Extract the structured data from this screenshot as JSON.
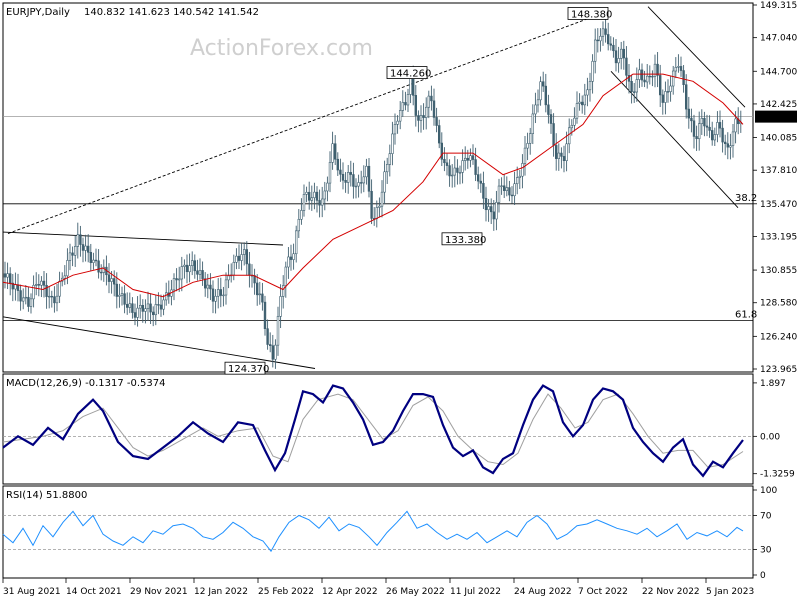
{
  "chart_data": {
    "type": "candlestick",
    "watermark": "ActionForex.com",
    "x_ticks": [
      "31 Aug 2021",
      "14 Oct 2021",
      "29 Nov 2021",
      "12 Jan 2022",
      "25 Feb 2022",
      "12 Apr 2022",
      "26 May 2022",
      "11 Jul 2022",
      "24 Aug 2022",
      "7 Oct 2022",
      "22 Nov 2022",
      "5 Jan 2023"
    ],
    "price": {
      "header": "EURJPY,Daily",
      "ohlc": "140.832 141.623 140.542 141.542",
      "ylim": [
        123.965,
        149.315
      ],
      "y_ticks": [
        {
          "v": 149.315,
          "label": "149.315"
        },
        {
          "v": 147.04,
          "label": "147.040"
        },
        {
          "v": 144.7,
          "label": "144.700"
        },
        {
          "v": 142.425,
          "label": "142.425"
        },
        {
          "v": 140.085,
          "label": "140.085"
        },
        {
          "v": 137.81,
          "label": "137.810"
        },
        {
          "v": 135.47,
          "label": "135.470"
        },
        {
          "v": 133.195,
          "label": "133.195"
        },
        {
          "v": 130.855,
          "label": "130.855"
        },
        {
          "v": 128.58,
          "label": "128.580"
        },
        {
          "v": 126.24,
          "label": "126.240"
        },
        {
          "v": 123.965,
          "label": "123.965"
        }
      ],
      "current": {
        "value": 141.542,
        "label": "141.542"
      },
      "annotations": [
        {
          "label": "148.380",
          "value": 148.38
        },
        {
          "label": "144.260",
          "value": 144.26
        },
        {
          "label": "133.380",
          "value": 133.38
        },
        {
          "label": "124.370",
          "value": 124.37
        }
      ],
      "fib_levels": [
        {
          "label": "38.2",
          "value": 135.47
        },
        {
          "label": "61.8",
          "value": 127.35
        }
      ],
      "ma_label": "",
      "close_path": [
        [
          0,
          130.6
        ],
        [
          8,
          130.0
        ],
        [
          18,
          129.0
        ],
        [
          25,
          128.5
        ],
        [
          35,
          130.2
        ],
        [
          45,
          129.2
        ],
        [
          50,
          128.5
        ],
        [
          60,
          130.4
        ],
        [
          65,
          131.5
        ],
        [
          75,
          133.0
        ],
        [
          85,
          132.0
        ],
        [
          95,
          131.0
        ],
        [
          105,
          130.5
        ],
        [
          115,
          129.2
        ],
        [
          125,
          128.4
        ],
        [
          130,
          127.8
        ],
        [
          140,
          128.3
        ],
        [
          150,
          128.0
        ],
        [
          160,
          128.6
        ],
        [
          170,
          129.8
        ],
        [
          180,
          131.0
        ],
        [
          190,
          131.2
        ],
        [
          200,
          130.2
        ],
        [
          210,
          129.0
        ],
        [
          220,
          129.3
        ],
        [
          230,
          131.2
        ],
        [
          240,
          132.2
        ],
        [
          250,
          130.0
        ],
        [
          258,
          129.0
        ],
        [
          264,
          126.0
        ],
        [
          270,
          124.6
        ],
        [
          276,
          128.0
        ],
        [
          282,
          131.0
        ],
        [
          290,
          132.0
        ],
        [
          300,
          136.0
        ],
        [
          310,
          136.0
        ],
        [
          320,
          135.5
        ],
        [
          330,
          139.5
        ],
        [
          338,
          137.0
        ],
        [
          346,
          137.5
        ],
        [
          355,
          136.5
        ],
        [
          363,
          138.0
        ],
        [
          370,
          134.0
        ],
        [
          378,
          136.0
        ],
        [
          386,
          139.0
        ],
        [
          394,
          141.5
        ],
        [
          402,
          142.5
        ],
        [
          408,
          144.0
        ],
        [
          415,
          141.0
        ],
        [
          422,
          142.0
        ],
        [
          428,
          143.0
        ],
        [
          435,
          140.0
        ],
        [
          442,
          138.0
        ],
        [
          450,
          137.5
        ],
        [
          458,
          138.0
        ],
        [
          466,
          139.0
        ],
        [
          474,
          137.5
        ],
        [
          482,
          135.5
        ],
        [
          490,
          134.5
        ],
        [
          498,
          137.0
        ],
        [
          506,
          136.0
        ],
        [
          514,
          137.0
        ],
        [
          522,
          139.0
        ],
        [
          530,
          141.5
        ],
        [
          538,
          144.0
        ],
        [
          545,
          142.0
        ],
        [
          552,
          139.0
        ],
        [
          560,
          138.5
        ],
        [
          568,
          141.0
        ],
        [
          576,
          142.5
        ],
        [
          584,
          143.0
        ],
        [
          592,
          146.5
        ],
        [
          598,
          147.5
        ],
        [
          605,
          147.0
        ],
        [
          612,
          145.5
        ],
        [
          620,
          146.0
        ],
        [
          628,
          143.0
        ],
        [
          636,
          144.5
        ],
        [
          644,
          144.0
        ],
        [
          652,
          145.0
        ],
        [
          660,
          142.5
        ],
        [
          668,
          144.0
        ],
        [
          676,
          145.5
        ],
        [
          684,
          142.0
        ],
        [
          692,
          140.0
        ],
        [
          700,
          141.5
        ],
        [
          708,
          140.0
        ],
        [
          716,
          141.0
        ],
        [
          724,
          139.0
        ],
        [
          732,
          141.0
        ],
        [
          740,
          141.542
        ]
      ],
      "ma_path": [
        [
          0,
          130.0
        ],
        [
          40,
          129.5
        ],
        [
          70,
          130.5
        ],
        [
          100,
          131.0
        ],
        [
          130,
          129.5
        ],
        [
          160,
          129.0
        ],
        [
          190,
          130.0
        ],
        [
          220,
          130.5
        ],
        [
          250,
          130.5
        ],
        [
          280,
          129.5
        ],
        [
          300,
          131.0
        ],
        [
          330,
          133.0
        ],
        [
          360,
          134.0
        ],
        [
          390,
          135.0
        ],
        [
          420,
          137.0
        ],
        [
          440,
          139.0
        ],
        [
          470,
          139.0
        ],
        [
          500,
          137.5
        ],
        [
          520,
          138.0
        ],
        [
          550,
          139.5
        ],
        [
          580,
          141.0
        ],
        [
          600,
          143.0
        ],
        [
          630,
          144.5
        ],
        [
          660,
          144.5
        ],
        [
          690,
          144.0
        ],
        [
          720,
          142.5
        ],
        [
          740,
          141.0
        ]
      ],
      "lines": [
        {
          "name": "upper-dotted-trendline",
          "dash": true,
          "p1": [
            5,
            133.4
          ],
          "p2": [
            598,
            148.7
          ]
        },
        {
          "name": "flag-upper",
          "dash": false,
          "p1": [
            0,
            133.5
          ],
          "p2": [
            280,
            132.6
          ]
        },
        {
          "name": "flag-lower",
          "dash": false,
          "p1": [
            0,
            127.6
          ],
          "p2": [
            312,
            124.0
          ]
        },
        {
          "name": "channel-upper",
          "dash": false,
          "p1": [
            645,
            149.2
          ],
          "p2": [
            742,
            142.2
          ]
        },
        {
          "name": "channel-lower",
          "dash": false,
          "p1": [
            608,
            144.7
          ],
          "p2": [
            735,
            135.2
          ]
        }
      ]
    },
    "macd": {
      "header": "MACD(12,26,9) -0.1317 -0.5374",
      "ylim": [
        -1.55,
        2.0
      ],
      "y_ticks": [
        {
          "v": 1.897,
          "label": "1.897"
        },
        {
          "v": 0.0,
          "label": "0.00"
        },
        {
          "v": -1.3259,
          "label": "-1.3259"
        }
      ],
      "main_path": [
        [
          0,
          -0.4
        ],
        [
          15,
          0.0
        ],
        [
          30,
          -0.3
        ],
        [
          45,
          0.3
        ],
        [
          60,
          -0.1
        ],
        [
          75,
          0.8
        ],
        [
          90,
          1.3
        ],
        [
          100,
          0.9
        ],
        [
          115,
          -0.2
        ],
        [
          130,
          -0.7
        ],
        [
          145,
          -0.8
        ],
        [
          160,
          -0.4
        ],
        [
          175,
          0.0
        ],
        [
          190,
          0.5
        ],
        [
          205,
          0.1
        ],
        [
          220,
          -0.2
        ],
        [
          235,
          0.5
        ],
        [
          250,
          0.4
        ],
        [
          262,
          -0.5
        ],
        [
          272,
          -1.2
        ],
        [
          282,
          -0.6
        ],
        [
          292,
          0.6
        ],
        [
          300,
          1.6
        ],
        [
          310,
          1.5
        ],
        [
          320,
          1.2
        ],
        [
          330,
          1.8
        ],
        [
          340,
          1.7
        ],
        [
          350,
          1.2
        ],
        [
          360,
          0.6
        ],
        [
          370,
          -0.3
        ],
        [
          380,
          -0.2
        ],
        [
          390,
          0.2
        ],
        [
          400,
          0.9
        ],
        [
          410,
          1.5
        ],
        [
          420,
          1.5
        ],
        [
          430,
          1.4
        ],
        [
          440,
          0.4
        ],
        [
          450,
          -0.4
        ],
        [
          460,
          -0.7
        ],
        [
          470,
          -0.5
        ],
        [
          480,
          -1.1
        ],
        [
          490,
          -1.3
        ],
        [
          500,
          -0.8
        ],
        [
          510,
          -0.6
        ],
        [
          520,
          0.4
        ],
        [
          530,
          1.3
        ],
        [
          540,
          1.8
        ],
        [
          550,
          1.6
        ],
        [
          560,
          0.5
        ],
        [
          570,
          0.0
        ],
        [
          580,
          0.4
        ],
        [
          590,
          1.3
        ],
        [
          600,
          1.7
        ],
        [
          610,
          1.6
        ],
        [
          620,
          1.3
        ],
        [
          630,
          0.3
        ],
        [
          640,
          -0.2
        ],
        [
          650,
          -0.6
        ],
        [
          660,
          -0.9
        ],
        [
          670,
          -0.4
        ],
        [
          680,
          -0.1
        ],
        [
          690,
          -1.0
        ],
        [
          700,
          -1.4
        ],
        [
          710,
          -0.9
        ],
        [
          720,
          -1.1
        ],
        [
          730,
          -0.6
        ],
        [
          740,
          -0.13
        ]
      ],
      "signal_path": [
        [
          0,
          -0.2
        ],
        [
          20,
          -0.1
        ],
        [
          40,
          0.0
        ],
        [
          60,
          0.2
        ],
        [
          80,
          0.7
        ],
        [
          100,
          1.0
        ],
        [
          115,
          0.3
        ],
        [
          130,
          -0.4
        ],
        [
          145,
          -0.7
        ],
        [
          160,
          -0.5
        ],
        [
          180,
          -0.1
        ],
        [
          200,
          0.3
        ],
        [
          215,
          0.0
        ],
        [
          235,
          0.2
        ],
        [
          255,
          0.3
        ],
        [
          270,
          -0.7
        ],
        [
          285,
          -0.9
        ],
        [
          300,
          0.6
        ],
        [
          315,
          1.3
        ],
        [
          335,
          1.5
        ],
        [
          350,
          1.3
        ],
        [
          365,
          0.6
        ],
        [
          380,
          -0.1
        ],
        [
          395,
          0.2
        ],
        [
          410,
          1.1
        ],
        [
          425,
          1.4
        ],
        [
          440,
          0.9
        ],
        [
          455,
          0.0
        ],
        [
          470,
          -0.5
        ],
        [
          485,
          -0.9
        ],
        [
          500,
          -1.0
        ],
        [
          515,
          -0.6
        ],
        [
          530,
          0.6
        ],
        [
          545,
          1.5
        ],
        [
          558,
          1.0
        ],
        [
          572,
          0.3
        ],
        [
          585,
          0.5
        ],
        [
          600,
          1.3
        ],
        [
          615,
          1.5
        ],
        [
          630,
          0.8
        ],
        [
          645,
          0.0
        ],
        [
          660,
          -0.6
        ],
        [
          675,
          -0.5
        ],
        [
          690,
          -0.5
        ],
        [
          705,
          -1.1
        ],
        [
          720,
          -1.0
        ],
        [
          740,
          -0.54
        ]
      ]
    },
    "rsi": {
      "header": "RSI(14) 51.8800",
      "ylim": [
        0,
        100
      ],
      "y_ticks": [
        {
          "v": 100,
          "label": "100"
        },
        {
          "v": 70,
          "label": "70"
        },
        {
          "v": 30,
          "label": "30"
        },
        {
          "v": 0,
          "label": "0"
        }
      ],
      "path": [
        [
          0,
          48
        ],
        [
          10,
          38
        ],
        [
          20,
          55
        ],
        [
          30,
          35
        ],
        [
          40,
          58
        ],
        [
          50,
          45
        ],
        [
          60,
          62
        ],
        [
          70,
          75
        ],
        [
          80,
          58
        ],
        [
          90,
          70
        ],
        [
          100,
          48
        ],
        [
          110,
          40
        ],
        [
          120,
          35
        ],
        [
          130,
          45
        ],
        [
          140,
          38
        ],
        [
          150,
          52
        ],
        [
          160,
          48
        ],
        [
          170,
          58
        ],
        [
          180,
          60
        ],
        [
          190,
          55
        ],
        [
          200,
          45
        ],
        [
          210,
          42
        ],
        [
          220,
          50
        ],
        [
          230,
          62
        ],
        [
          240,
          55
        ],
        [
          250,
          45
        ],
        [
          260,
          40
        ],
        [
          268,
          28
        ],
        [
          276,
          45
        ],
        [
          286,
          62
        ],
        [
          296,
          70
        ],
        [
          306,
          65
        ],
        [
          316,
          55
        ],
        [
          326,
          68
        ],
        [
          336,
          52
        ],
        [
          346,
          60
        ],
        [
          356,
          56
        ],
        [
          366,
          45
        ],
        [
          374,
          35
        ],
        [
          384,
          50
        ],
        [
          394,
          62
        ],
        [
          404,
          75
        ],
        [
          414,
          55
        ],
        [
          424,
          60
        ],
        [
          434,
          50
        ],
        [
          444,
          42
        ],
        [
          454,
          48
        ],
        [
          464,
          42
        ],
        [
          474,
          50
        ],
        [
          484,
          38
        ],
        [
          494,
          45
        ],
        [
          504,
          52
        ],
        [
          514,
          45
        ],
        [
          524,
          62
        ],
        [
          534,
          70
        ],
        [
          544,
          60
        ],
        [
          554,
          42
        ],
        [
          564,
          48
        ],
        [
          574,
          58
        ],
        [
          584,
          60
        ],
        [
          594,
          65
        ],
        [
          604,
          60
        ],
        [
          614,
          55
        ],
        [
          624,
          52
        ],
        [
          634,
          48
        ],
        [
          644,
          55
        ],
        [
          654,
          45
        ],
        [
          664,
          52
        ],
        [
          674,
          60
        ],
        [
          684,
          42
        ],
        [
          694,
          50
        ],
        [
          704,
          46
        ],
        [
          714,
          52
        ],
        [
          724,
          45
        ],
        [
          734,
          56
        ],
        [
          740,
          51.88
        ]
      ]
    }
  }
}
